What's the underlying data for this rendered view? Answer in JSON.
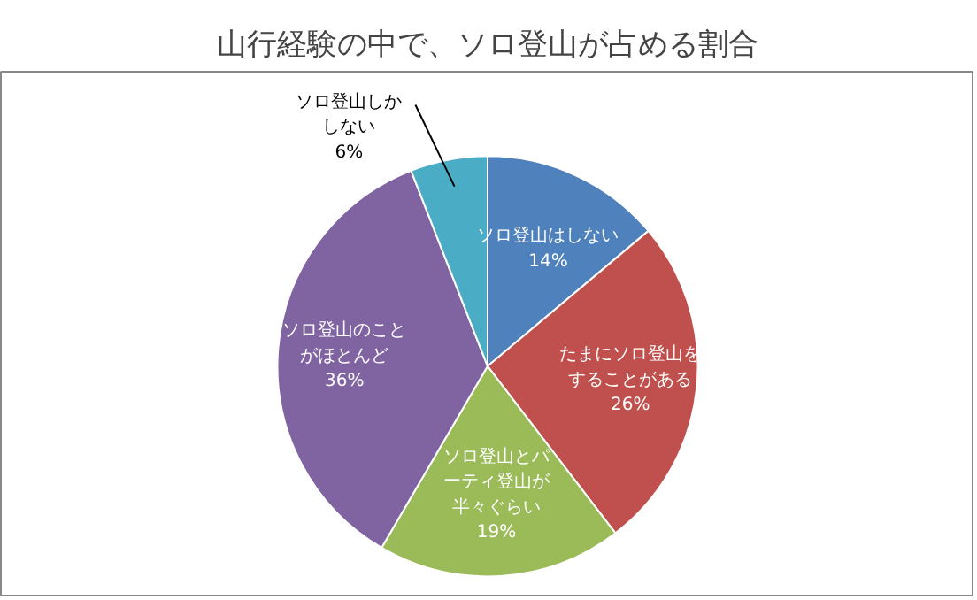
{
  "chart_data": {
    "type": "pie",
    "title": "山行経験の中で、ソロ登山が占める割合",
    "categories": [
      "ソロ登山はしない",
      "たまにソロ登山をすることがある",
      "ソロ登山とパーティ登山が半々ぐらい",
      "ソロ登山のことがほとんど",
      "ソロ登山しかしない"
    ],
    "values": [
      14,
      26,
      19,
      36,
      6
    ],
    "value_labels": [
      "14%",
      "26%",
      "19%",
      "36%",
      "6%"
    ],
    "colors": [
      "#4f81bd",
      "#c0504d",
      "#9bbb59",
      "#8064a2",
      "#4bacc6"
    ]
  }
}
